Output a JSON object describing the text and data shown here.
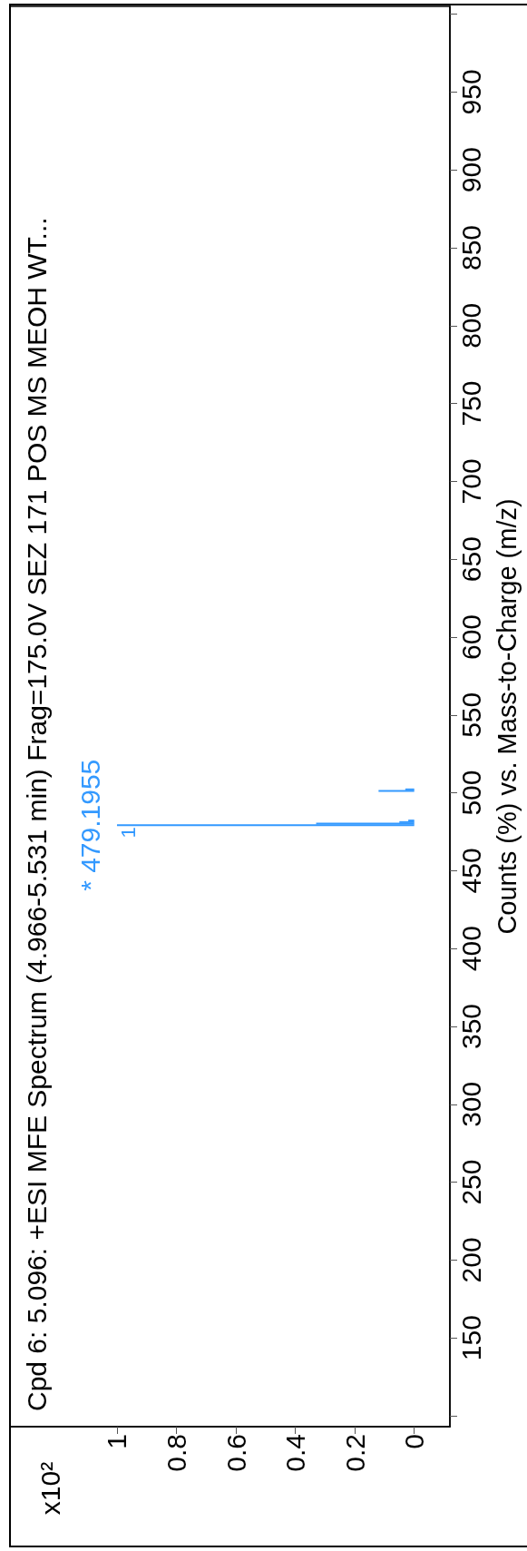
{
  "chart_data": {
    "type": "line",
    "title": "Cpd 6: 5.096: +ESI MFE Spectrum (4.966-5.531 min) Frag=175.0V SEZ 171 POS MS MEOH WT...",
    "ylabel": "Counts (%) vs. Mass-to-Charge (m/z)",
    "series": [
      {
        "color": "#3399ff",
        "x": [
          0,
          1.0
        ],
        "values": [
          479.2,
          479.2
        ]
      },
      {
        "color": "#3399ff",
        "x": [
          0,
          0.33
        ],
        "values": [
          480.2,
          480.2
        ]
      },
      {
        "color": "#3399ff",
        "x": [
          0,
          0.05
        ],
        "values": [
          481.2,
          481.2
        ]
      },
      {
        "color": "#3399ff",
        "x": [
          0,
          0.02
        ],
        "values": [
          482.2,
          482.2
        ]
      },
      {
        "color": "#3399ff",
        "x": [
          0,
          0.12
        ],
        "values": [
          501.2,
          501.2
        ]
      },
      {
        "color": "#3399ff",
        "x": [
          0,
          0.03
        ],
        "values": [
          502.2,
          502.2
        ]
      }
    ],
    "xlim": [
      1.36,
      -0.12
    ],
    "xticks": [
      0,
      0.2,
      0.4,
      0.6,
      0.8,
      1
    ],
    "ylim": [
      93,
      1005
    ],
    "yticks": [
      {
        "value": 100,
        "label": null
      },
      150,
      200,
      250,
      300,
      350,
      400,
      450,
      500,
      550,
      600,
      650,
      700,
      750,
      800,
      850,
      900,
      950,
      {
        "value": 1000,
        "label": null
      }
    ],
    "annotations": [
      {
        "text": "* 479.1955",
        "x": 1.0,
        "y": 479.2
      },
      {
        "text": "1",
        "x": 1.0,
        "y": 479.2
      },
      "x10²"
    ],
    "marker": "none"
  }
}
